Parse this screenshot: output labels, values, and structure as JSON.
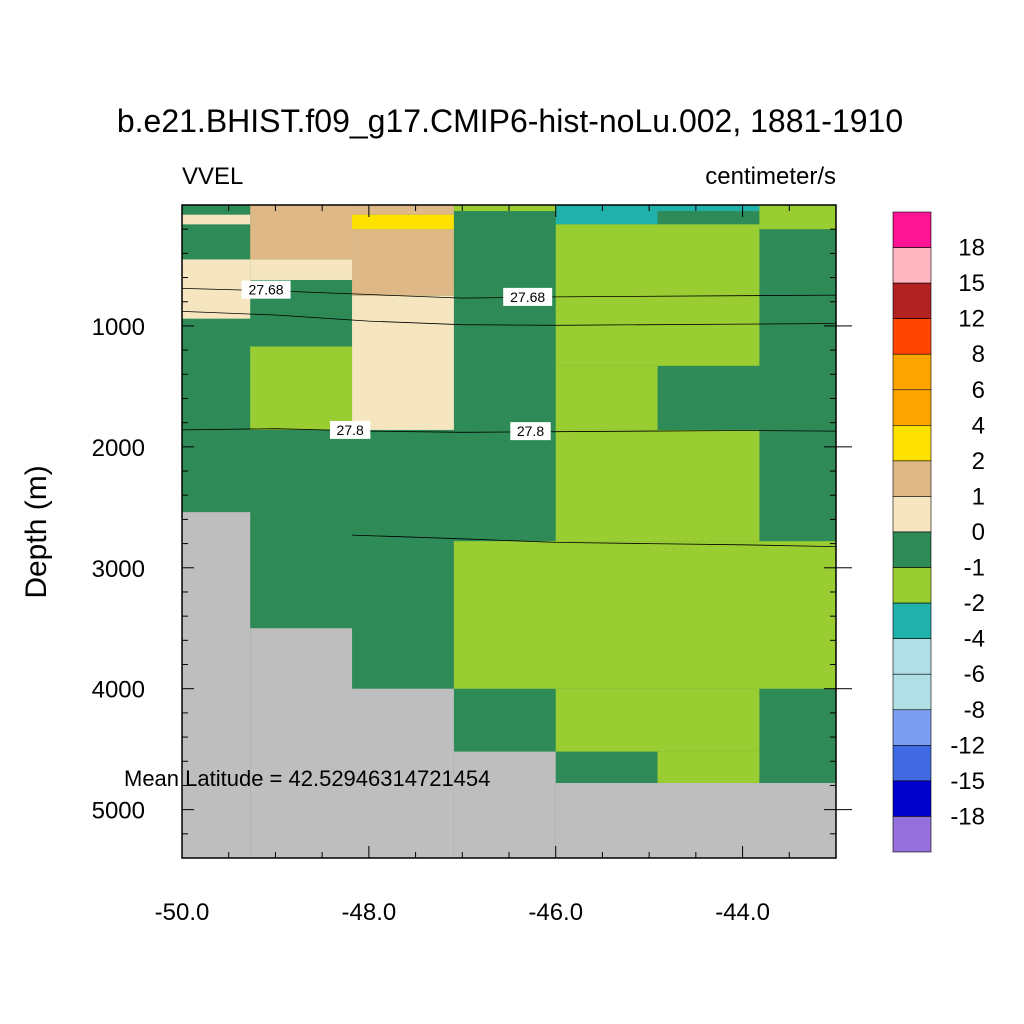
{
  "chart_data": {
    "type": "heatmap",
    "title": "b.e21.BHIST.f09_g17.CMIP6-hist-noLu.002, 1881-1910",
    "left_label": "VVEL",
    "right_label": "centimeter/s",
    "ylabel": "Depth (m)",
    "xlabel": "",
    "xlim": [
      -50.0,
      -43.0
    ],
    "ylim": [
      0,
      5400
    ],
    "y_inverted": true,
    "x_ticks": [
      "-50.0",
      "-48.0",
      "-46.0",
      "-44.0"
    ],
    "x_tick_values": [
      -50.0,
      -48.0,
      -46.0,
      -44.0
    ],
    "y_ticks": [
      "1000",
      "2000",
      "3000",
      "4000",
      "5000"
    ],
    "y_tick_values": [
      1000,
      2000,
      3000,
      4000,
      5000
    ],
    "annotation": "Mean Latitude = 42.52946314721454",
    "missing_color": "#bebebe",
    "colorbar": {
      "labels": [
        "18",
        "15",
        "12",
        "8",
        "6",
        "4",
        "2",
        "1",
        "0",
        "-1",
        "-2",
        "-4",
        "-6",
        "-8",
        "-12",
        "-15",
        "-18"
      ],
      "colors": [
        "#ff1493",
        "#ffb6c1",
        "#b22222",
        "#ff4500",
        "#ffa500",
        "#ffa500",
        "#ffe100",
        "#deb887",
        "#f5e6c0",
        "#2e8b57",
        "#9acd32",
        "#20b2aa",
        "#b0e0e6",
        "#b0e0e6",
        "#7b9ef0",
        "#4169e1",
        "#0000cd",
        "#9370db"
      ]
    },
    "cells": [
      {
        "x0": -50.0,
        "x1": -43.0,
        "d0": 0,
        "d1": 5400,
        "v": "0"
      },
      {
        "x0": -50.0,
        "x1": -49.27,
        "d0": 0,
        "d1": 80,
        "v": "0"
      },
      {
        "x0": -50.0,
        "x1": -49.27,
        "d0": 80,
        "d1": 160,
        "v": "1"
      },
      {
        "x0": -50.0,
        "x1": -49.27,
        "d0": 450,
        "d1": 940,
        "v": "1"
      },
      {
        "x0": -49.27,
        "x1": -48.18,
        "d0": 450,
        "d1": 620,
        "v": "1"
      },
      {
        "x0": -48.18,
        "x1": -47.09,
        "d0": 750,
        "d1": 1860,
        "v": "1"
      },
      {
        "x0": -49.27,
        "x1": -48.18,
        "d0": 0,
        "d1": 450,
        "v": "2"
      },
      {
        "x0": -48.18,
        "x1": -47.09,
        "d0": 0,
        "d1": 80,
        "v": "2"
      },
      {
        "x0": -48.18,
        "x1": -47.09,
        "d0": 200,
        "d1": 750,
        "v": "2"
      },
      {
        "x0": -48.18,
        "x1": -47.09,
        "d0": 80,
        "d1": 200,
        "v": "4"
      },
      {
        "x0": -49.27,
        "x1": -48.18,
        "d0": 1170,
        "d1": 1860,
        "v": "-1"
      },
      {
        "x0": -47.09,
        "x1": -46.0,
        "d0": 0,
        "d1": 50,
        "v": "-1"
      },
      {
        "x0": -46.0,
        "x1": -44.91,
        "d0": 0,
        "d1": 160,
        "v": "-2"
      },
      {
        "x0": -44.91,
        "x1": -43.82,
        "d0": 0,
        "d1": 50,
        "v": "-2"
      },
      {
        "x0": -43.82,
        "x1": -43.0,
        "d0": 0,
        "d1": 200,
        "v": "-1"
      },
      {
        "x0": -46.0,
        "x1": -43.82,
        "d0": 160,
        "d1": 1330,
        "v": "-1"
      },
      {
        "x0": -46.0,
        "x1": -44.91,
        "d0": 1330,
        "d1": 1860,
        "v": "-1"
      },
      {
        "x0": -46.0,
        "x1": -43.82,
        "d0": 1860,
        "d1": 2780,
        "v": "-1"
      },
      {
        "x0": -47.09,
        "x1": -43.0,
        "d0": 2780,
        "d1": 4000,
        "v": "-1"
      },
      {
        "x0": -46.0,
        "x1": -43.82,
        "d0": 4000,
        "d1": 4520,
        "v": "-1"
      },
      {
        "x0": -44.91,
        "x1": -43.82,
        "d0": 4520,
        "d1": 4780,
        "v": "-1"
      },
      {
        "x0": -50.0,
        "x1": -49.27,
        "d0": 2540,
        "d1": 5400,
        "v": "missing"
      },
      {
        "x0": -49.27,
        "x1": -48.18,
        "d0": 3500,
        "d1": 5400,
        "v": "missing"
      },
      {
        "x0": -48.18,
        "x1": -47.09,
        "d0": 4000,
        "d1": 5400,
        "v": "missing"
      },
      {
        "x0": -47.09,
        "x1": -46.0,
        "d0": 4520,
        "d1": 5400,
        "v": "missing"
      },
      {
        "x0": -46.0,
        "x1": -43.0,
        "d0": 4780,
        "d1": 5400,
        "v": "missing"
      }
    ],
    "contours": [
      {
        "points": [
          [
            -50.0,
            690
          ],
          [
            -49.0,
            710
          ],
          [
            -47.0,
            770
          ],
          [
            -46.0,
            760
          ],
          [
            -44.0,
            750
          ],
          [
            -43.0,
            745
          ]
        ]
      },
      {
        "points": [
          [
            -50.0,
            880
          ],
          [
            -49.0,
            910
          ],
          [
            -48.0,
            960
          ],
          [
            -47.0,
            990
          ],
          [
            -46.0,
            995
          ],
          [
            -44.0,
            985
          ],
          [
            -43.0,
            980
          ]
        ]
      },
      {
        "points": [
          [
            -50.0,
            1860
          ],
          [
            -49.0,
            1850
          ],
          [
            -48.0,
            1870
          ],
          [
            -47.0,
            1880
          ],
          [
            -46.0,
            1875
          ],
          [
            -44.0,
            1865
          ],
          [
            -43.0,
            1870
          ]
        ]
      },
      {
        "points": [
          [
            -48.18,
            2730
          ],
          [
            -47.0,
            2760
          ],
          [
            -46.0,
            2790
          ],
          [
            -45.0,
            2800
          ],
          [
            -44.0,
            2810
          ],
          [
            -43.0,
            2825
          ]
        ]
      }
    ],
    "contour_labels": [
      {
        "text": "27.68",
        "x": -49.1,
        "d": 700
      },
      {
        "text": "27.68",
        "x": -46.3,
        "d": 760
      },
      {
        "text": "27.8",
        "x": -48.2,
        "d": 1860
      },
      {
        "text": "27.8",
        "x": -46.27,
        "d": 1870
      }
    ]
  }
}
